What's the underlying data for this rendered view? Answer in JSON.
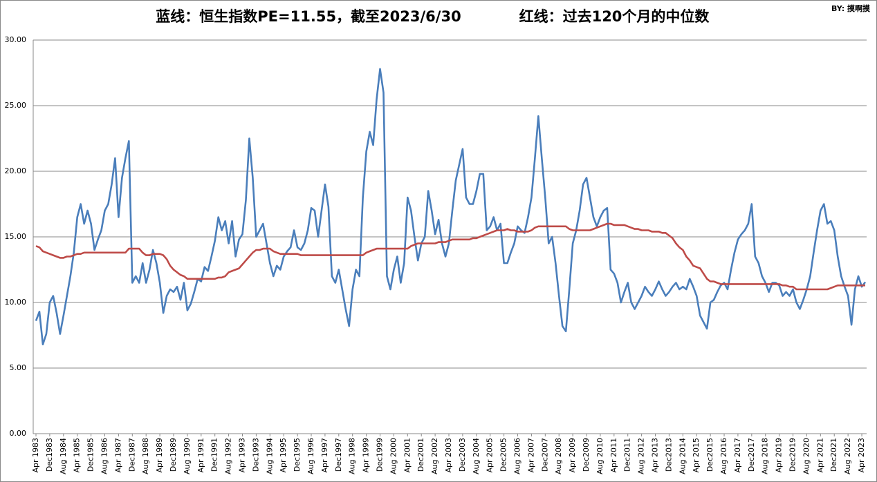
{
  "chart_data": {
    "type": "line",
    "title": "蓝线：恒生指数PE=11.55，截至2023/6/30",
    "subtitle": "红线：过去120个月的中位数",
    "annotation": "BY: 摸啊摸",
    "categories": [
      "Apr 1983",
      null,
      null,
      null,
      "Dec1983",
      null,
      null,
      null,
      "Aug 1984",
      null,
      null,
      null,
      "Apr 1985",
      null,
      null,
      null,
      "Dec1985",
      null,
      null,
      null,
      "Aug 1986",
      null,
      null,
      null,
      "Apr 1987",
      null,
      null,
      null,
      "Dec1987",
      null,
      null,
      null,
      "Aug 1988",
      null,
      null,
      null,
      "Apr 1989",
      null,
      null,
      null,
      "Dec1989",
      null,
      null,
      null,
      "Aug 1990",
      null,
      null,
      null,
      "Apr 1991",
      null,
      null,
      null,
      "Dec1991",
      null,
      null,
      null,
      "Aug 1992",
      null,
      null,
      null,
      "Apr 1993",
      null,
      null,
      null,
      "Dec1993",
      null,
      null,
      null,
      "Aug 1994",
      null,
      null,
      null,
      "Apr 1995",
      null,
      null,
      null,
      "Dec1995",
      null,
      null,
      null,
      "Aug 1996",
      null,
      null,
      null,
      "Apr 1997",
      null,
      null,
      null,
      "Dec1997",
      null,
      null,
      null,
      "Aug 1998",
      null,
      null,
      null,
      "Apr 1999",
      null,
      null,
      null,
      "Dec1999",
      null,
      null,
      null,
      "Aug 2000",
      null,
      null,
      null,
      "Apr 2001",
      null,
      null,
      null,
      "Dec2001",
      null,
      null,
      null,
      "Aug 2002",
      null,
      null,
      null,
      "Apr 2003",
      null,
      null,
      null,
      "Dec2003",
      null,
      null,
      null,
      "Aug 2004",
      null,
      null,
      null,
      "Apr 2005",
      null,
      null,
      null,
      "Dec2005",
      null,
      null,
      null,
      "Aug 2006",
      null,
      null,
      null,
      "Apr 2007",
      null,
      null,
      null,
      "Dec2007",
      null,
      null,
      null,
      "Aug 2008",
      null,
      null,
      null,
      "Apr 2009",
      null,
      null,
      null,
      "Dec2009",
      null,
      null,
      null,
      "Aug 2010",
      null,
      null,
      null,
      "Apr 2011",
      null,
      null,
      null,
      "Dec2011",
      null,
      null,
      null,
      "Aug 2012",
      null,
      null,
      null,
      "Apr 2013",
      null,
      null,
      null,
      "Dec2013",
      null,
      null,
      null,
      "Aug 2014",
      null,
      null,
      null,
      "Apr 2015",
      null,
      null,
      null,
      "Dec2015",
      null,
      null,
      null,
      "Aug 2016",
      null,
      null,
      null,
      "Apr 2017",
      null,
      null,
      null,
      "Dec2017",
      null,
      null,
      null,
      "Aug 2018",
      null,
      null,
      null,
      "Apr 2019",
      null,
      null,
      null,
      "Dec2019",
      null,
      null,
      null,
      "Aug 2020",
      null,
      null,
      null,
      "Apr 2021",
      null,
      null,
      null,
      "Dec2021",
      null,
      null,
      null,
      "Aug 2022",
      null,
      null,
      null,
      "Apr 2023",
      null
    ],
    "series": [
      {
        "color": "#4a7ebb",
        "values": [
          8.6,
          9.3,
          6.8,
          7.6,
          10.0,
          10.5,
          9.2,
          7.6,
          9.0,
          10.5,
          12.0,
          13.8,
          16.5,
          17.5,
          16.0,
          17.0,
          16.0,
          14.0,
          14.8,
          15.5,
          17.0,
          17.5,
          19.0,
          21.0,
          16.5,
          19.5,
          21.0,
          22.3,
          11.5,
          12.0,
          11.5,
          13.0,
          11.5,
          12.5,
          14.0,
          13.0,
          11.5,
          9.2,
          10.5,
          11.0,
          10.8,
          11.2,
          10.2,
          11.5,
          9.4,
          9.9,
          10.8,
          11.8,
          11.6,
          12.7,
          12.4,
          13.5,
          14.7,
          16.5,
          15.5,
          16.2,
          14.5,
          16.2,
          13.5,
          14.8,
          15.2,
          17.8,
          22.5,
          19.5,
          15.0,
          15.5,
          16.0,
          14.5,
          13.0,
          12.0,
          12.8,
          12.5,
          13.5,
          13.9,
          14.2,
          15.5,
          14.2,
          14.0,
          14.5,
          15.5,
          17.2,
          17.0,
          15.0,
          17.0,
          19.0,
          17.3,
          12.0,
          11.5,
          12.5,
          11.0,
          9.5,
          8.2,
          11.0,
          12.5,
          12.0,
          18.0,
          21.5,
          23.0,
          22.0,
          25.5,
          27.8,
          26.0,
          12.0,
          11.0,
          12.5,
          13.5,
          11.5,
          13.0,
          18.0,
          17.0,
          15.0,
          13.2,
          14.5,
          15.0,
          18.5,
          17.0,
          15.2,
          16.3,
          14.5,
          13.5,
          14.5,
          17.0,
          19.3,
          20.5,
          21.7,
          18.0,
          17.5,
          17.5,
          18.5,
          19.8,
          19.8,
          15.5,
          15.8,
          16.5,
          15.5,
          16.0,
          13.0,
          13.0,
          13.8,
          14.5,
          15.8,
          15.5,
          15.3,
          16.5,
          18.0,
          21.0,
          24.2,
          21.0,
          18.0,
          14.5,
          15.0,
          13.0,
          10.5,
          8.2,
          7.8,
          11.0,
          14.5,
          15.5,
          17.0,
          19.0,
          19.5,
          18.0,
          16.5,
          15.8,
          16.5,
          17.0,
          17.2,
          12.5,
          12.2,
          11.5,
          10.0,
          10.8,
          11.5,
          10.0,
          9.5,
          10.0,
          10.5,
          11.2,
          10.8,
          10.5,
          11.0,
          11.6,
          11.0,
          10.5,
          10.8,
          11.2,
          11.5,
          11.0,
          11.2,
          11.0,
          11.8,
          11.2,
          10.5,
          9.0,
          8.5,
          8.0,
          10.0,
          10.2,
          10.8,
          11.3,
          11.5,
          11.0,
          12.5,
          13.8,
          14.8,
          15.2,
          15.5,
          16.0,
          17.5,
          13.5,
          13.0,
          12.0,
          11.5,
          10.8,
          11.5,
          11.5,
          11.3,
          10.5,
          10.8,
          10.5,
          11.0,
          10.0,
          9.5,
          10.2,
          11.0,
          12.0,
          13.8,
          15.5,
          17.0,
          17.5,
          16.0,
          16.2,
          15.5,
          13.5,
          12.0,
          11.2,
          10.5,
          8.3,
          11.0,
          12.0,
          11.2,
          11.55
        ]
      },
      {
        "color": "#be4b48",
        "values": [
          14.3,
          14.2,
          13.9,
          13.8,
          13.7,
          13.6,
          13.5,
          13.4,
          13.4,
          13.5,
          13.5,
          13.6,
          13.7,
          13.7,
          13.8,
          13.8,
          13.8,
          13.8,
          13.8,
          13.8,
          13.8,
          13.8,
          13.8,
          13.8,
          13.8,
          13.8,
          13.8,
          14.1,
          14.1,
          14.1,
          14.1,
          13.8,
          13.6,
          13.6,
          13.7,
          13.7,
          13.7,
          13.6,
          13.3,
          12.8,
          12.5,
          12.3,
          12.1,
          12.0,
          11.8,
          11.8,
          11.8,
          11.8,
          11.8,
          11.8,
          11.8,
          11.8,
          11.8,
          11.9,
          11.9,
          12.0,
          12.3,
          12.4,
          12.5,
          12.6,
          12.9,
          13.2,
          13.5,
          13.8,
          14.0,
          14.0,
          14.1,
          14.1,
          14.1,
          13.9,
          13.8,
          13.7,
          13.7,
          13.7,
          13.7,
          13.7,
          13.7,
          13.6,
          13.6,
          13.6,
          13.6,
          13.6,
          13.6,
          13.6,
          13.6,
          13.6,
          13.6,
          13.6,
          13.6,
          13.6,
          13.6,
          13.6,
          13.6,
          13.6,
          13.6,
          13.6,
          13.8,
          13.9,
          14.0,
          14.1,
          14.1,
          14.1,
          14.1,
          14.1,
          14.1,
          14.1,
          14.1,
          14.1,
          14.1,
          14.3,
          14.4,
          14.5,
          14.5,
          14.5,
          14.5,
          14.5,
          14.5,
          14.6,
          14.6,
          14.6,
          14.7,
          14.8,
          14.8,
          14.8,
          14.8,
          14.8,
          14.8,
          14.9,
          14.9,
          15.0,
          15.1,
          15.2,
          15.3,
          15.4,
          15.5,
          15.5,
          15.5,
          15.6,
          15.5,
          15.5,
          15.4,
          15.4,
          15.4,
          15.4,
          15.5,
          15.7,
          15.8,
          15.8,
          15.8,
          15.8,
          15.8,
          15.8,
          15.8,
          15.8,
          15.8,
          15.6,
          15.5,
          15.5,
          15.5,
          15.5,
          15.5,
          15.5,
          15.6,
          15.7,
          15.8,
          15.9,
          16.0,
          16.0,
          15.9,
          15.9,
          15.9,
          15.9,
          15.8,
          15.7,
          15.6,
          15.6,
          15.5,
          15.5,
          15.5,
          15.4,
          15.4,
          15.4,
          15.3,
          15.3,
          15.1,
          14.9,
          14.5,
          14.2,
          14.0,
          13.5,
          13.2,
          12.8,
          12.7,
          12.6,
          12.2,
          11.8,
          11.6,
          11.6,
          11.5,
          11.4,
          11.4,
          11.4,
          11.4,
          11.4,
          11.4,
          11.4,
          11.4,
          11.4,
          11.4,
          11.4,
          11.4,
          11.4,
          11.4,
          11.4,
          11.4,
          11.4,
          11.4,
          11.3,
          11.3,
          11.2,
          11.2,
          11.0,
          11.0,
          11.0,
          11.0,
          11.0,
          11.0,
          11.0,
          11.0,
          11.0,
          11.0,
          11.1,
          11.2,
          11.3,
          11.3,
          11.3,
          11.3,
          11.3,
          11.3,
          11.3,
          11.3,
          11.3
        ]
      }
    ],
    "ylim": [
      0,
      30
    ],
    "yticks": [
      {
        "value": 0,
        "label": "0.00"
      },
      {
        "value": 5,
        "label": "5.00"
      },
      {
        "value": 10,
        "label": "10.00"
      },
      {
        "value": 15,
        "label": "15.00"
      },
      {
        "value": 20,
        "label": "20.00"
      },
      {
        "value": 25,
        "label": "25.00"
      },
      {
        "value": 30,
        "label": "30.00"
      }
    ],
    "grid": true
  }
}
